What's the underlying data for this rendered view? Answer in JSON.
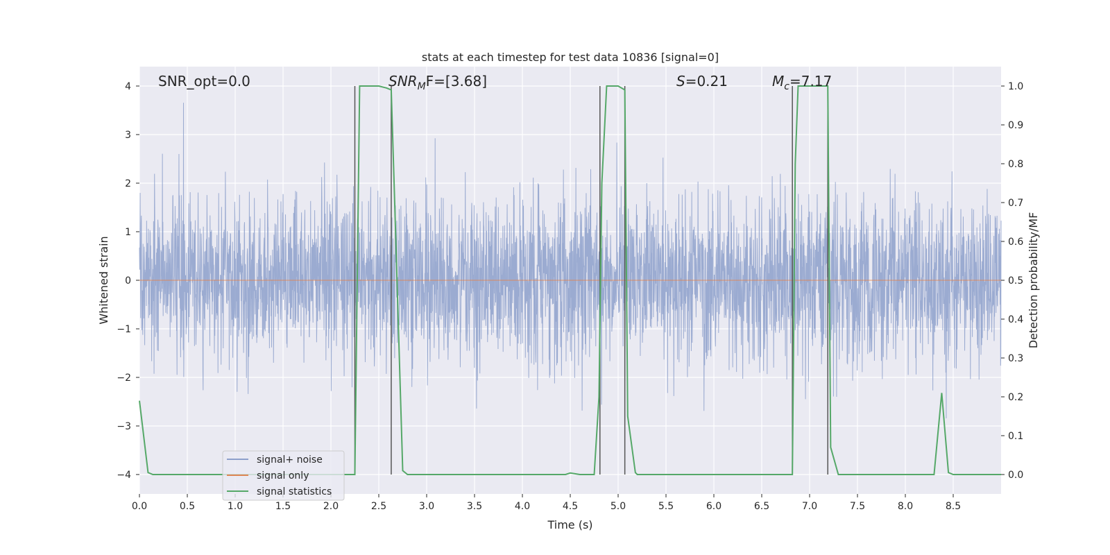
{
  "chart_data": {
    "type": "line",
    "title": "stats at each timestep for test data 10836 [signal=0]",
    "xlabel": "Time (s)",
    "ylabel_left": "Whitened strain",
    "ylabel_right": "Detection probability/MF",
    "xlim": [
      0.0,
      9.0
    ],
    "ylim_left": [
      -4.4,
      4.4
    ],
    "ylim_right": [
      -0.05,
      1.05
    ],
    "x_ticks": [
      0.0,
      0.5,
      1.0,
      1.5,
      2.0,
      2.5,
      3.0,
      3.5,
      4.0,
      4.5,
      5.0,
      5.5,
      6.0,
      6.5,
      7.0,
      7.5,
      8.0,
      8.5
    ],
    "x_tick_labels": [
      "0.0",
      "0.5",
      "1.0",
      "1.5",
      "2.0",
      "2.5",
      "3.0",
      "3.5",
      "4.0",
      "4.5",
      "5.0",
      "5.5",
      "6.0",
      "6.5",
      "7.0",
      "7.5",
      "8.0",
      "8.5"
    ],
    "y_left_ticks": [
      4,
      3,
      2,
      1,
      0,
      -1,
      -2,
      -3,
      -4
    ],
    "y_left_tick_labels": [
      "4",
      "3",
      "2",
      "1",
      "0",
      "−1",
      "−2",
      "−3",
      "−4"
    ],
    "y_right_ticks": [
      1.0,
      0.9,
      0.8,
      0.7,
      0.6,
      0.5,
      0.4,
      0.3,
      0.2,
      0.1,
      0.0
    ],
    "y_right_tick_labels": [
      "1.0",
      "0.9",
      "0.8",
      "0.7",
      "0.6",
      "0.5",
      "0.4",
      "0.3",
      "0.2",
      "0.1",
      "0.0"
    ],
    "grid": true,
    "legend_position": "bottom-left",
    "legend": [
      {
        "label": "signal+ noise",
        "color": "#8da0cb"
      },
      {
        "label": "signal only",
        "color": "#dd8452"
      },
      {
        "label": "signal statistics",
        "color": "#55a868"
      }
    ],
    "annotations": {
      "snr_opt": "SNR_opt=0.0",
      "snr_mf_sym": "SNR",
      "snr_mf_sub": "M",
      "snr_mf_rest": "F=[3.68]",
      "s_sym": "S",
      "s_rest": "=0.21",
      "mc_sym": "M",
      "mc_sub": "c",
      "mc_rest": "=7.17"
    },
    "vertical_markers": [
      2.25,
      2.63,
      4.81,
      5.07,
      6.82,
      7.19
    ],
    "series": [
      {
        "name": "signal+ noise",
        "axis": "left",
        "style": "noise",
        "noise_std": 0.85,
        "duration": 9.0,
        "color": "#8da0cb"
      },
      {
        "name": "signal only",
        "axis": "left",
        "color": "#dd8452",
        "x": [
          0.0,
          9.0
        ],
        "y": [
          0.0,
          0.0
        ]
      },
      {
        "name": "signal statistics",
        "axis": "right",
        "color": "#55a868",
        "x": [
          0.0,
          0.09,
          0.14,
          0.5,
          1.0,
          1.5,
          2.0,
          2.25,
          2.27,
          2.3,
          2.5,
          2.58,
          2.63,
          2.66,
          2.75,
          2.8,
          3.0,
          3.5,
          4.0,
          4.45,
          4.5,
          4.6,
          4.7,
          4.75,
          4.8,
          4.83,
          4.88,
          5.0,
          5.07,
          5.1,
          5.18,
          5.2,
          5.5,
          6.0,
          6.5,
          6.82,
          6.85,
          6.88,
          7.0,
          7.1,
          7.19,
          7.22,
          7.3,
          7.5,
          8.0,
          8.3,
          8.38,
          8.45,
          8.5,
          9.0
        ],
        "y": [
          0.19,
          0.005,
          0.0,
          0.0,
          0.0,
          0.0,
          0.0,
          0.0,
          0.4,
          1.0,
          1.0,
          0.995,
          0.99,
          0.75,
          0.01,
          0.0,
          0.0,
          0.0,
          0.0,
          0.0,
          0.004,
          0.0,
          0.0,
          0.0,
          0.2,
          0.75,
          1.0,
          1.0,
          0.99,
          0.15,
          0.005,
          0.0,
          0.0,
          0.0,
          0.0,
          0.0,
          0.8,
          1.0,
          1.0,
          1.0,
          1.0,
          0.07,
          0.0,
          0.0,
          0.0,
          0.0,
          0.21,
          0.005,
          0.0,
          0.0
        ]
      }
    ]
  }
}
